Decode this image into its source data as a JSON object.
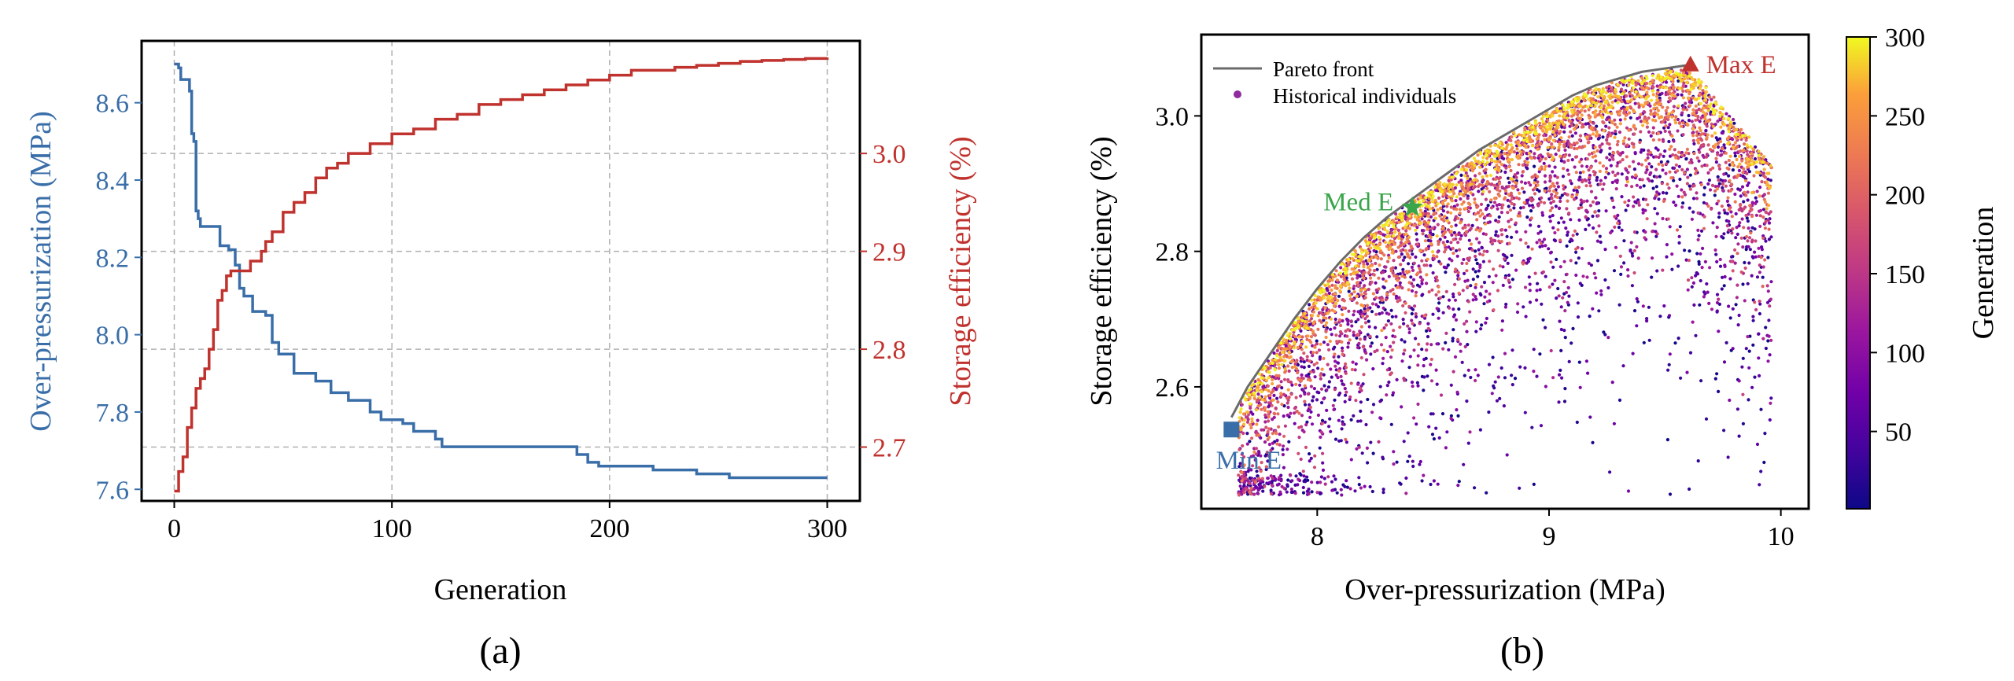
{
  "colors": {
    "blue": "#3a6ea8",
    "red": "#c0322e",
    "green": "#3aa64a",
    "pareto": "#6b6b6b",
    "grid": "#b0b0b0"
  },
  "panel_labels": {
    "a": "(a)",
    "b": "(b)"
  },
  "chart_data": [
    {
      "id": "a",
      "type": "line",
      "xlabel": "Generation",
      "ylabel": "Over-pressurization (MPa)",
      "y2label": "Storage efficiency (%)",
      "xlim": [
        -15,
        315
      ],
      "ylim": [
        7.57,
        8.76
      ],
      "y2lim": [
        2.645,
        3.115
      ],
      "xticks": [
        0,
        100,
        200,
        300
      ],
      "yticks": [
        7.6,
        7.8,
        8.0,
        8.2,
        8.4,
        8.6
      ],
      "y2ticks": [
        2.7,
        2.8,
        2.9,
        3.0
      ],
      "grid": true,
      "series": [
        {
          "axis": "left",
          "color_key": "blue",
          "x": [
            0,
            2,
            3,
            6,
            7,
            8,
            9,
            10,
            11,
            12,
            20,
            21,
            25,
            28,
            30,
            32,
            36,
            42,
            45,
            48,
            55,
            65,
            72,
            80,
            90,
            95,
            105,
            110,
            115,
            120,
            123,
            145,
            160,
            180,
            185,
            190,
            195,
            210,
            220,
            230,
            240,
            250,
            255,
            280,
            300
          ],
          "values": [
            8.7,
            8.69,
            8.66,
            8.66,
            8.63,
            8.52,
            8.5,
            8.32,
            8.3,
            8.28,
            8.28,
            8.23,
            8.22,
            8.18,
            8.12,
            8.1,
            8.06,
            8.05,
            7.98,
            7.95,
            7.9,
            7.88,
            7.85,
            7.83,
            7.8,
            7.78,
            7.77,
            7.75,
            7.75,
            7.73,
            7.71,
            7.71,
            7.71,
            7.71,
            7.69,
            7.67,
            7.66,
            7.66,
            7.65,
            7.65,
            7.64,
            7.64,
            7.63,
            7.63,
            7.63
          ]
        },
        {
          "axis": "right",
          "color_key": "red",
          "x": [
            0,
            2,
            4,
            6,
            8,
            10,
            12,
            14,
            16,
            18,
            20,
            22,
            24,
            26,
            30,
            35,
            40,
            42,
            45,
            50,
            55,
            60,
            65,
            70,
            75,
            80,
            90,
            100,
            110,
            120,
            130,
            140,
            150,
            160,
            170,
            180,
            190,
            200,
            210,
            220,
            230,
            240,
            250,
            260,
            270,
            280,
            290,
            300
          ],
          "values": [
            2.655,
            2.675,
            2.69,
            2.72,
            2.74,
            2.76,
            2.77,
            2.78,
            2.8,
            2.82,
            2.85,
            2.86,
            2.875,
            2.88,
            2.88,
            2.89,
            2.9,
            2.91,
            2.92,
            2.94,
            2.95,
            2.96,
            2.975,
            2.985,
            2.99,
            3.0,
            3.01,
            3.02,
            3.025,
            3.035,
            3.04,
            3.05,
            3.055,
            3.06,
            3.065,
            3.07,
            3.075,
            3.08,
            3.085,
            3.085,
            3.088,
            3.09,
            3.092,
            3.094,
            3.095,
            3.096,
            3.097,
            3.098
          ]
        }
      ]
    },
    {
      "id": "b",
      "type": "scatter",
      "xlabel": "Over-pressurization (MPa)",
      "ylabel": "Storage efficiency (%)",
      "xlim": [
        7.5,
        10.12
      ],
      "ylim": [
        2.42,
        3.12
      ],
      "xticks": [
        8,
        9,
        10
      ],
      "yticks": [
        2.6,
        2.8,
        3.0
      ],
      "grid": false,
      "colorbar": {
        "label": "Generation",
        "range": [
          1,
          300
        ],
        "ticks": [
          50,
          100,
          150,
          200,
          250,
          300
        ],
        "colormap": "plasma"
      },
      "legend": {
        "position": "top-left",
        "entries": [
          "Pareto front",
          "Historical individuals"
        ]
      },
      "pareto_front": {
        "x": [
          7.63,
          7.7,
          7.8,
          7.9,
          8.0,
          8.1,
          8.2,
          8.3,
          8.4,
          8.5,
          8.6,
          8.7,
          8.8,
          8.9,
          9.0,
          9.1,
          9.2,
          9.3,
          9.4,
          9.5,
          9.6
        ],
        "y": [
          2.555,
          2.6,
          2.65,
          2.7,
          2.745,
          2.785,
          2.82,
          2.85,
          2.875,
          2.9,
          2.925,
          2.95,
          2.97,
          2.99,
          3.01,
          3.03,
          3.045,
          3.055,
          3.065,
          3.07,
          3.075
        ]
      },
      "points": {
        "x_range": [
          7.63,
          9.98
        ],
        "y_range": [
          2.44,
          3.07
        ],
        "generation_range": [
          1,
          300
        ]
      },
      "annotations": [
        {
          "text": "Min E",
          "x": 7.63,
          "y": 2.537,
          "marker": "square",
          "color_key": "blue"
        },
        {
          "text": "Med E",
          "x": 8.41,
          "y": 2.865,
          "marker": "star",
          "color_key": "green"
        },
        {
          "text": "Max E",
          "x": 9.61,
          "y": 3.075,
          "marker": "triangle",
          "color_key": "red"
        }
      ]
    }
  ]
}
